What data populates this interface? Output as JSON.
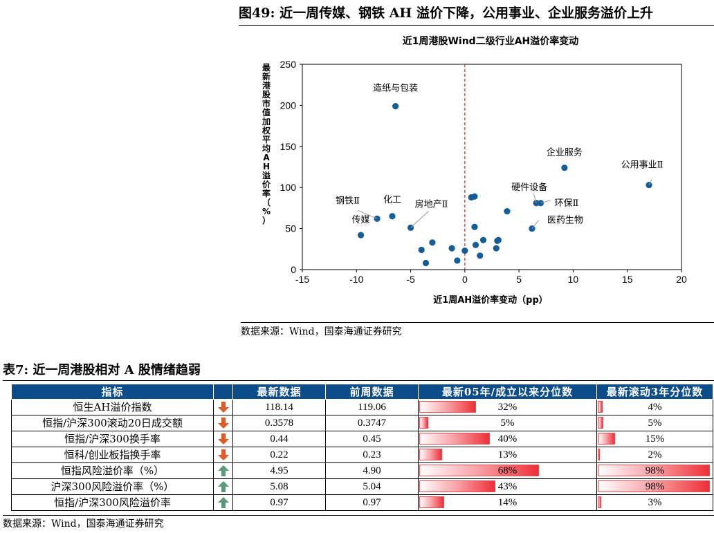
{
  "figure": {
    "title": "图49: 近一周传媒、钢铁 AH 溢价下降，公用事业、企业服务溢价上升",
    "source": "数据来源：Wind，国泰海通证券研究"
  },
  "chart_data": {
    "type": "scatter",
    "title": "近1周港股Wind二级行业AH溢价率变动",
    "xlabel": "近1周AH溢价率变动（pp）",
    "ylabel": "最新港股市值加权平均AH溢价率（%）",
    "xlim": [
      -15,
      20
    ],
    "ylim": [
      0,
      250
    ],
    "xticks": [
      "-15",
      "-10",
      "-5",
      "0",
      "5",
      "10",
      "15",
      "20"
    ],
    "yticks": [
      "0",
      "50",
      "100",
      "150",
      "200",
      "250"
    ],
    "reference_line": {
      "x": 0,
      "color": "#d7191c",
      "style": "dashed"
    },
    "point_color": "#135d9a",
    "points": [
      {
        "x": -6.4,
        "y": 199,
        "label": "造纸与包装"
      },
      {
        "x": -9.6,
        "y": 42,
        "label": "传媒"
      },
      {
        "x": -8.1,
        "y": 62,
        "label": "钢铁Ⅱ"
      },
      {
        "x": -6.7,
        "y": 65,
        "label": "化工"
      },
      {
        "x": -5.0,
        "y": 51,
        "label": "房地产Ⅱ"
      },
      {
        "x": 17.0,
        "y": 103,
        "label": "公用事业Ⅱ"
      },
      {
        "x": 9.2,
        "y": 124,
        "label": "企业服务"
      },
      {
        "x": 6.6,
        "y": 81,
        "label": "硬件设备"
      },
      {
        "x": 7.0,
        "y": 81,
        "label": "环保Ⅱ"
      },
      {
        "x": 6.2,
        "y": 50,
        "label": "医药生物"
      },
      {
        "x": 0.6,
        "y": 88
      },
      {
        "x": 0.9,
        "y": 89
      },
      {
        "x": 3.9,
        "y": 71
      },
      {
        "x": 0.9,
        "y": 52
      },
      {
        "x": 3.0,
        "y": 35
      },
      {
        "x": 3.1,
        "y": 36
      },
      {
        "x": 1.0,
        "y": 30
      },
      {
        "x": 1.7,
        "y": 36
      },
      {
        "x": 2.9,
        "y": 26
      },
      {
        "x": 1.4,
        "y": 17
      },
      {
        "x": -1.2,
        "y": 26
      },
      {
        "x": -3.0,
        "y": 33
      },
      {
        "x": -4.0,
        "y": 24
      },
      {
        "x": -3.6,
        "y": 8
      },
      {
        "x": -0.7,
        "y": 11
      },
      {
        "x": 0.0,
        "y": 23
      }
    ]
  },
  "table": {
    "title": "表7: 近一周港股相对 A 股情绪趋弱",
    "headers": [
      "指标",
      "",
      "最新数据",
      "前周数据",
      "最新05年/成立以来分位数",
      "最新滚动3年分位数"
    ],
    "rows": [
      {
        "name": "恒生AH溢价指数",
        "trend": "down",
        "latest": "118.14",
        "prev": "119.06",
        "pct_all_label": "32%",
        "pct_all": 0.32,
        "pct_3y_label": "4%",
        "pct_3y": 0.04
      },
      {
        "name": "恒指/沪深300滚动20日成交额",
        "trend": "down",
        "latest": "0.3578",
        "prev": "0.3747",
        "pct_all_label": "5%",
        "pct_all": 0.05,
        "pct_3y_label": "5%",
        "pct_3y": 0.05
      },
      {
        "name": "恒指/沪深300换手率",
        "trend": "down",
        "latest": "0.44",
        "prev": "0.45",
        "pct_all_label": "40%",
        "pct_all": 0.4,
        "pct_3y_label": "15%",
        "pct_3y": 0.15
      },
      {
        "name": "恒科/创业板指换手率",
        "trend": "down",
        "latest": "0.22",
        "prev": "0.23",
        "pct_all_label": "13%",
        "pct_all": 0.13,
        "pct_3y_label": "2%",
        "pct_3y": 0.02
      },
      {
        "name": "恒指风险溢价率（%）",
        "trend": "up",
        "latest": "4.95",
        "prev": "4.90",
        "pct_all_label": "68%",
        "pct_all": 0.68,
        "pct_3y_label": "98%",
        "pct_3y": 0.98
      },
      {
        "name": "沪深300风险溢价率（%）",
        "trend": "up",
        "latest": "5.08",
        "prev": "5.04",
        "pct_all_label": "43%",
        "pct_all": 0.43,
        "pct_3y_label": "98%",
        "pct_3y": 0.98
      },
      {
        "name": "恒指/沪深300风险溢价率",
        "trend": "up",
        "latest": "0.97",
        "prev": "0.97",
        "pct_all_label": "14%",
        "pct_all": 0.14,
        "pct_3y_label": "3%",
        "pct_3y": 0.03
      }
    ],
    "source": "数据来源：Wind，国泰海通证券研究",
    "colors": {
      "header_bg": "#0b4c8a",
      "down_arrow": "#e05a28",
      "up_arrow": "#5b9a78"
    }
  }
}
